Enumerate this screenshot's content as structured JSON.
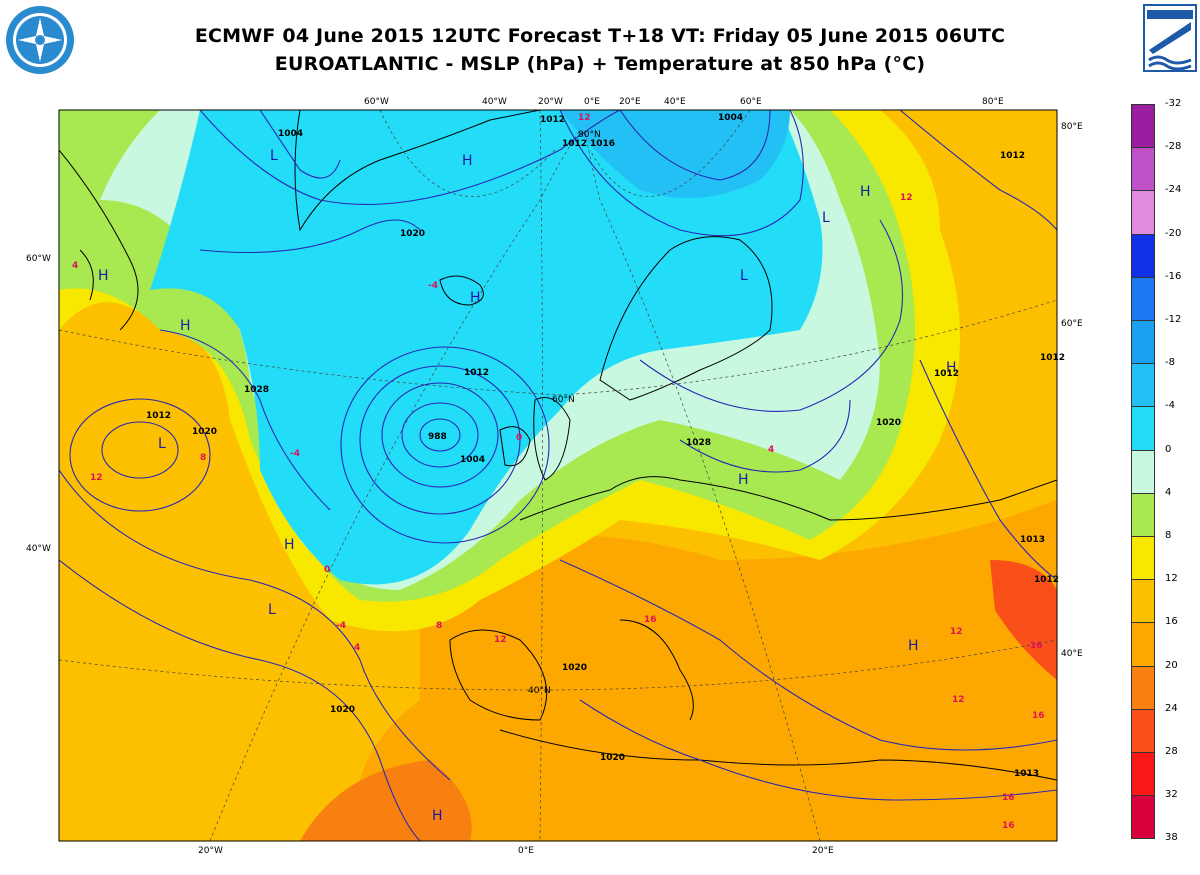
{
  "title": {
    "line1": "ECMWF 04 June 2015 12UTC Forecast T+18 VT: Friday 05 June 2015 06UTC",
    "line2": "EUROATLANTIC - MSLP (hPa) + Temperature at 850 hPa (°C)"
  },
  "logos": {
    "left": "wmo-style-emblem-icon",
    "right": "cnmca-logo-icon"
  },
  "graticule": {
    "top_lon": [
      "60°W",
      "40°W",
      "20°W",
      "0°E",
      "20°E",
      "40°E",
      "60°E",
      "80°E"
    ],
    "bottom_lon": [
      "20°W",
      "0°E",
      "20°E"
    ],
    "left_lat": [
      "60°W",
      "40°W"
    ],
    "right_lat": [
      "80°E",
      "60°E",
      "40°E"
    ],
    "inner": [
      "80°N",
      "60°N",
      "40°N"
    ]
  },
  "isobars": [
    "1004",
    "1020",
    "1028",
    "1012",
    "1004",
    "1012",
    "1020",
    "1020",
    "1028",
    "1020",
    "1012",
    "1012",
    "1020",
    "1013",
    "1012",
    "1020",
    "1013",
    "1012",
    "1016",
    "1004",
    "1012",
    "1012"
  ],
  "low_center": "988",
  "pressure_systems": [
    "L",
    "H",
    "H",
    "H",
    "L",
    "H",
    "L",
    "H",
    "H",
    "L",
    "H",
    "H",
    "H",
    "L",
    "H"
  ],
  "temp_labels": [
    "0",
    "-4",
    "4",
    "8",
    "12",
    "16",
    "12",
    "16",
    "12",
    "16",
    "12",
    "16",
    "4",
    "-4",
    "4",
    "0",
    "8",
    "12",
    "16",
    "-4",
    "12"
  ],
  "legend": {
    "labels": [
      "-32",
      "-28",
      "-24",
      "-20",
      "-16",
      "-12",
      "-8",
      "-4",
      "0",
      "4",
      "8",
      "12",
      "16",
      "20",
      "24",
      "28",
      "32",
      "38"
    ],
    "colors": [
      "#9a1fa0",
      "#c050c8",
      "#e08ae0",
      "#1030e8",
      "#1a78f0",
      "#1ca0f0",
      "#22c0f4",
      "#22dcf8",
      "#c8f8e0",
      "#a8e850",
      "#f8e800",
      "#fcc000",
      "#fca800",
      "#f88010",
      "#f85018",
      "#f81818",
      "#d8003c"
    ]
  },
  "colors": {
    "isobar": "#2828b4",
    "coast": "#000000",
    "temp_label": "#e0105a"
  }
}
